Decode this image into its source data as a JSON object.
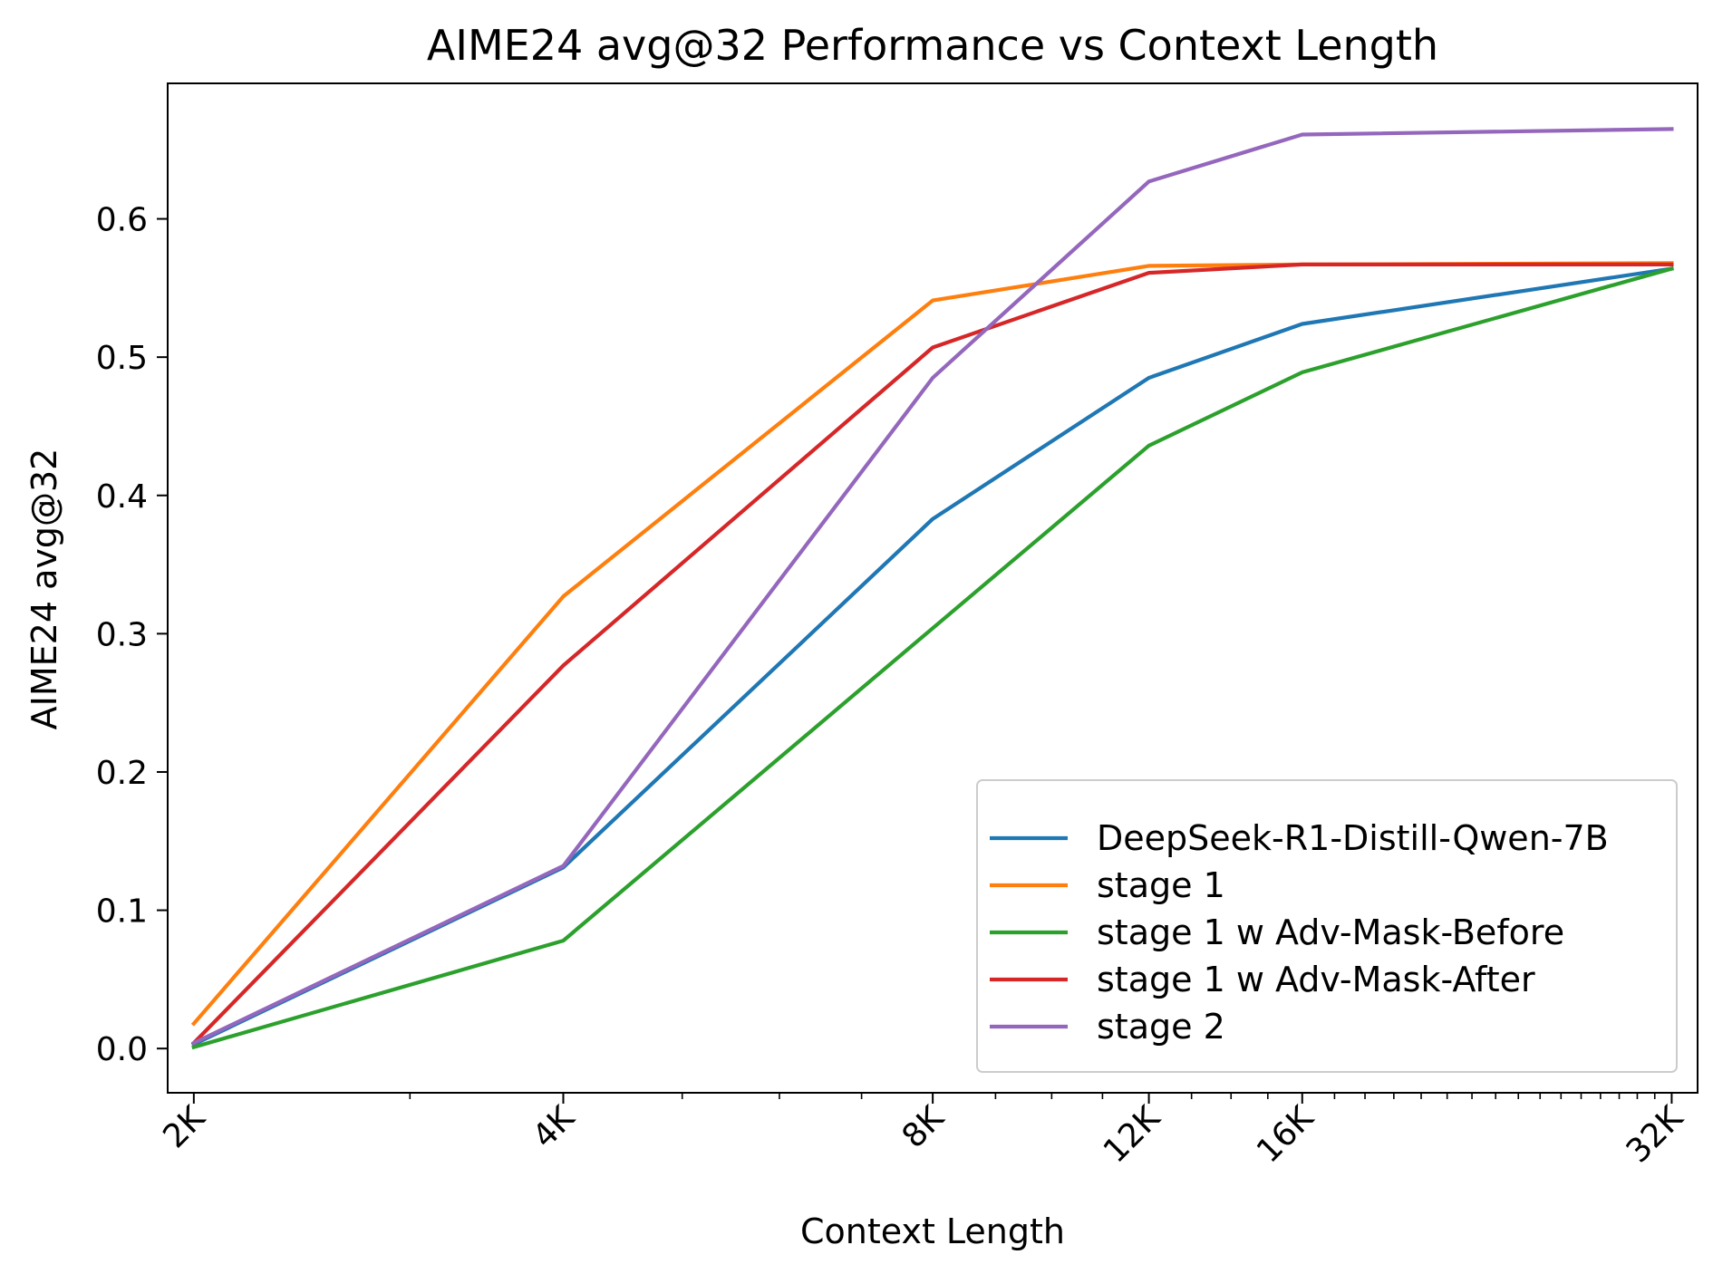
{
  "chart_data": {
    "type": "line",
    "title": "AIME24 avg@32 Performance vs Context Length",
    "xlabel": "Context Length",
    "ylabel": "AIME24 avg@32",
    "x_scale": "log2",
    "x": [
      2048,
      4096,
      8192,
      12288,
      16384,
      32768
    ],
    "x_tick_labels": [
      "2K",
      "4K",
      "8K",
      "12K",
      "16K",
      "32K"
    ],
    "xlim": [
      1950,
      34400
    ],
    "ylim": [
      -0.032,
      0.698
    ],
    "y_ticks": [
      0.0,
      0.1,
      0.2,
      0.3,
      0.4,
      0.5,
      0.6
    ],
    "y_tick_labels": [
      "0.0",
      "0.1",
      "0.2",
      "0.3",
      "0.4",
      "0.5",
      "0.6"
    ],
    "grid": false,
    "legend_position": "lower-right",
    "series": [
      {
        "name": "DeepSeek-R1-Distill-Qwen-7B",
        "color": "#1f77b4",
        "values": [
          0.003,
          0.131,
          0.383,
          0.485,
          0.524,
          0.564
        ]
      },
      {
        "name": "stage 1",
        "color": "#ff7f0e",
        "values": [
          0.018,
          0.327,
          0.541,
          0.566,
          0.567,
          0.568
        ]
      },
      {
        "name": "stage 1 w Adv-Mask-Before",
        "color": "#2ca02c",
        "values": [
          0.001,
          0.078,
          0.304,
          0.436,
          0.489,
          0.564
        ]
      },
      {
        "name": "stage 1 w Adv-Mask-After",
        "color": "#d62728",
        "values": [
          0.004,
          0.277,
          0.507,
          0.561,
          0.567,
          0.567
        ]
      },
      {
        "name": "stage 2",
        "color": "#9467bd",
        "values": [
          0.004,
          0.132,
          0.485,
          0.627,
          0.661,
          0.665
        ]
      }
    ]
  }
}
